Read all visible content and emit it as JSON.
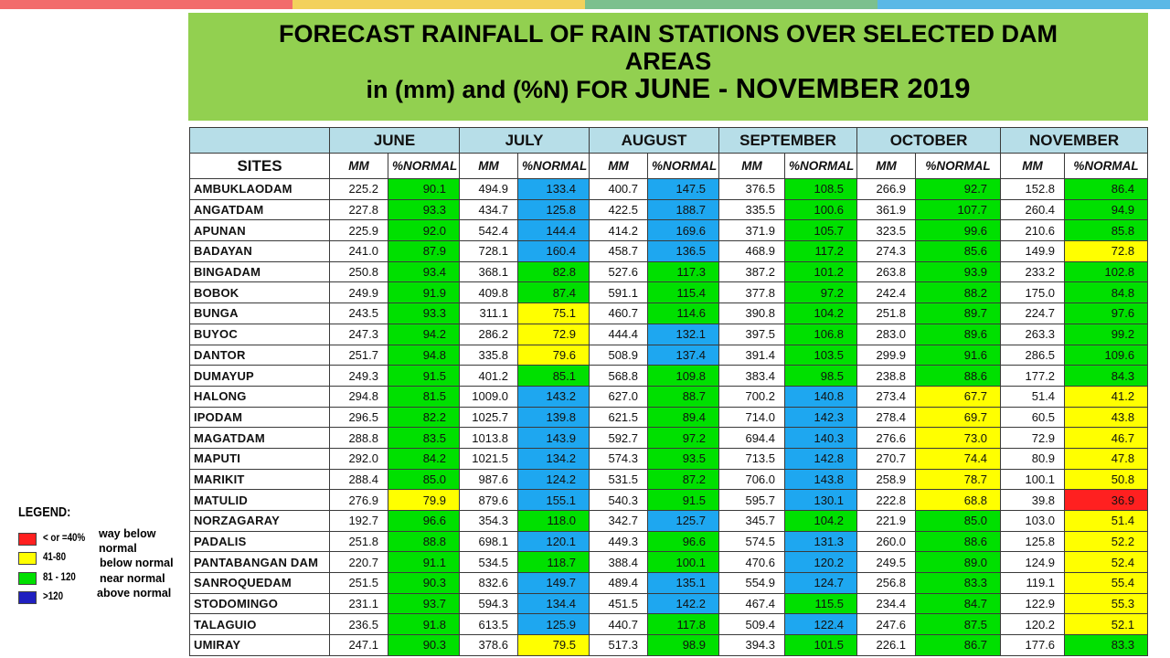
{
  "colors": {
    "topbar": [
      "#f26b6b",
      "#f3d15c",
      "#7cc08e",
      "#5ab8e6"
    ],
    "title_bg": "#92d050",
    "header_bg": "#b7dee8",
    "green": "#00e000",
    "blue": "#1ea7f0",
    "yellow": "#ffff00",
    "red": "#ff2020"
  },
  "title": {
    "line1": "FORECAST RAINFALL OF RAIN STATIONS OVER SELECTED DAM",
    "line2": "AREAS",
    "line3_prefix": "in (mm) and (%N) FOR ",
    "line3_big": "JUNE - NOVEMBER 2019"
  },
  "table": {
    "sites_header": "SITES",
    "months": [
      "JUNE",
      "JULY",
      "AUGUST",
      "SEPTEMBER",
      "OCTOBER",
      "NOVEMBER"
    ],
    "mm_header": "MM",
    "pct_header": "%NORMAL",
    "rows": [
      {
        "site": "AMBUKLAODAM",
        "mm": [
          "225.2",
          "494.9",
          "400.7",
          "376.5",
          "266.9",
          "152.8"
        ],
        "pct": [
          "90.1",
          "133.4",
          "147.5",
          "108.5",
          "92.7",
          "86.4"
        ],
        "cls": [
          "g",
          "b",
          "b",
          "g",
          "g",
          "g"
        ]
      },
      {
        "site": "ANGATDAM",
        "mm": [
          "227.8",
          "434.7",
          "422.5",
          "335.5",
          "361.9",
          "260.4"
        ],
        "pct": [
          "93.3",
          "125.8",
          "188.7",
          "100.6",
          "107.7",
          "94.9"
        ],
        "cls": [
          "g",
          "b",
          "b",
          "g",
          "g",
          "g"
        ]
      },
      {
        "site": "APUNAN",
        "mm": [
          "225.9",
          "542.4",
          "414.2",
          "371.9",
          "323.5",
          "210.6"
        ],
        "pct": [
          "92.0",
          "144.4",
          "169.6",
          "105.7",
          "99.6",
          "85.8"
        ],
        "cls": [
          "g",
          "b",
          "b",
          "g",
          "g",
          "g"
        ]
      },
      {
        "site": "BADAYAN",
        "mm": [
          "241.0",
          "728.1",
          "458.7",
          "468.9",
          "274.3",
          "149.9"
        ],
        "pct": [
          "87.9",
          "160.4",
          "136.5",
          "117.2",
          "85.6",
          "72.8"
        ],
        "cls": [
          "g",
          "b",
          "b",
          "g",
          "g",
          "y"
        ]
      },
      {
        "site": "BINGADAM",
        "mm": [
          "250.8",
          "368.1",
          "527.6",
          "387.2",
          "263.8",
          "233.2"
        ],
        "pct": [
          "93.4",
          "82.8",
          "117.3",
          "101.2",
          "93.9",
          "102.8"
        ],
        "cls": [
          "g",
          "g",
          "g",
          "g",
          "g",
          "g"
        ]
      },
      {
        "site": "BOBOK",
        "mm": [
          "249.9",
          "409.8",
          "591.1",
          "377.8",
          "242.4",
          "175.0"
        ],
        "pct": [
          "91.9",
          "87.4",
          "115.4",
          "97.2",
          "88.2",
          "84.8"
        ],
        "cls": [
          "g",
          "g",
          "g",
          "g",
          "g",
          "g"
        ]
      },
      {
        "site": "BUNGA",
        "mm": [
          "243.5",
          "311.1",
          "460.7",
          "390.8",
          "251.8",
          "224.7"
        ],
        "pct": [
          "93.3",
          "75.1",
          "114.6",
          "104.2",
          "89.7",
          "97.6"
        ],
        "cls": [
          "g",
          "y",
          "g",
          "g",
          "g",
          "g"
        ]
      },
      {
        "site": "BUYOC",
        "mm": [
          "247.3",
          "286.2",
          "444.4",
          "397.5",
          "283.0",
          "263.3"
        ],
        "pct": [
          "94.2",
          "72.9",
          "132.1",
          "106.8",
          "89.6",
          "99.2"
        ],
        "cls": [
          "g",
          "y",
          "b",
          "g",
          "g",
          "g"
        ]
      },
      {
        "site": "DANTOR",
        "mm": [
          "251.7",
          "335.8",
          "508.9",
          "391.4",
          "299.9",
          "286.5"
        ],
        "pct": [
          "94.8",
          "79.6",
          "137.4",
          "103.5",
          "91.6",
          "109.6"
        ],
        "cls": [
          "g",
          "y",
          "b",
          "g",
          "g",
          "g"
        ]
      },
      {
        "site": "DUMAYUP",
        "mm": [
          "249.3",
          "401.2",
          "568.8",
          "383.4",
          "238.8",
          "177.2"
        ],
        "pct": [
          "91.5",
          "85.1",
          "109.8",
          "98.5",
          "88.6",
          "84.3"
        ],
        "cls": [
          "g",
          "g",
          "g",
          "g",
          "g",
          "g"
        ]
      },
      {
        "site": "HALONG",
        "mm": [
          "294.8",
          "1009.0",
          "627.0",
          "700.2",
          "273.4",
          "51.4"
        ],
        "pct": [
          "81.5",
          "143.2",
          "88.7",
          "140.8",
          "67.7",
          "41.2"
        ],
        "cls": [
          "g",
          "b",
          "g",
          "b",
          "y",
          "y"
        ]
      },
      {
        "site": "IPODAM",
        "mm": [
          "296.5",
          "1025.7",
          "621.5",
          "714.0",
          "278.4",
          "60.5"
        ],
        "pct": [
          "82.2",
          "139.8",
          "89.4",
          "142.3",
          "69.7",
          "43.8"
        ],
        "cls": [
          "g",
          "b",
          "g",
          "b",
          "y",
          "y"
        ]
      },
      {
        "site": "MAGATDAM",
        "mm": [
          "288.8",
          "1013.8",
          "592.7",
          "694.4",
          "276.6",
          "72.9"
        ],
        "pct": [
          "83.5",
          "143.9",
          "97.2",
          "140.3",
          "73.0",
          "46.7"
        ],
        "cls": [
          "g",
          "b",
          "g",
          "b",
          "y",
          "y"
        ]
      },
      {
        "site": "MAPUTI",
        "mm": [
          "292.0",
          "1021.5",
          "574.3",
          "713.5",
          "270.7",
          "80.9"
        ],
        "pct": [
          "84.2",
          "134.2",
          "93.5",
          "142.8",
          "74.4",
          "47.8"
        ],
        "cls": [
          "g",
          "b",
          "g",
          "b",
          "y",
          "y"
        ]
      },
      {
        "site": "MARIKIT",
        "mm": [
          "288.4",
          "987.6",
          "531.5",
          "706.0",
          "258.9",
          "100.1"
        ],
        "pct": [
          "85.0",
          "124.2",
          "87.2",
          "143.8",
          "78.7",
          "50.8"
        ],
        "cls": [
          "g",
          "b",
          "g",
          "b",
          "y",
          "y"
        ]
      },
      {
        "site": "MATULID",
        "mm": [
          "276.9",
          "879.6",
          "540.3",
          "595.7",
          "222.8",
          "39.8"
        ],
        "pct": [
          "79.9",
          "155.1",
          "91.5",
          "130.1",
          "68.8",
          "36.9"
        ],
        "cls": [
          "y",
          "b",
          "g",
          "b",
          "y",
          "r"
        ]
      },
      {
        "site": "NORZAGARAY",
        "mm": [
          "192.7",
          "354.3",
          "342.7",
          "345.7",
          "221.9",
          "103.0"
        ],
        "pct": [
          "96.6",
          "118.0",
          "125.7",
          "104.2",
          "85.0",
          "51.4"
        ],
        "cls": [
          "g",
          "g",
          "b",
          "g",
          "g",
          "y"
        ]
      },
      {
        "site": "PADALIS",
        "mm": [
          "251.8",
          "698.1",
          "449.3",
          "574.5",
          "260.0",
          "125.8"
        ],
        "pct": [
          "88.8",
          "120.1",
          "96.6",
          "131.3",
          "88.6",
          "52.2"
        ],
        "cls": [
          "g",
          "b",
          "g",
          "b",
          "g",
          "y"
        ]
      },
      {
        "site": "PANTABANGAN DAM",
        "mm": [
          "220.7",
          "534.5",
          "388.4",
          "470.6",
          "249.5",
          "124.9"
        ],
        "pct": [
          "91.1",
          "118.7",
          "100.1",
          "120.2",
          "89.0",
          "52.4"
        ],
        "cls": [
          "g",
          "g",
          "g",
          "b",
          "g",
          "y"
        ]
      },
      {
        "site": "SANROQUEDAM",
        "mm": [
          "251.5",
          "832.6",
          "489.4",
          "554.9",
          "256.8",
          "119.1"
        ],
        "pct": [
          "90.3",
          "149.7",
          "135.1",
          "124.7",
          "83.3",
          "55.4"
        ],
        "cls": [
          "g",
          "b",
          "b",
          "b",
          "g",
          "y"
        ]
      },
      {
        "site": "STODOMINGO",
        "mm": [
          "231.1",
          "594.3",
          "451.5",
          "467.4",
          "234.4",
          "122.9"
        ],
        "pct": [
          "93.7",
          "134.4",
          "142.2",
          "115.5",
          "84.7",
          "55.3"
        ],
        "cls": [
          "g",
          "b",
          "b",
          "g",
          "g",
          "y"
        ]
      },
      {
        "site": "TALAGUIO",
        "mm": [
          "236.5",
          "613.5",
          "440.7",
          "509.4",
          "247.6",
          "120.2"
        ],
        "pct": [
          "91.8",
          "125.9",
          "117.8",
          "122.4",
          "87.5",
          "52.1"
        ],
        "cls": [
          "g",
          "b",
          "g",
          "b",
          "g",
          "y"
        ]
      },
      {
        "site": "UMIRAY",
        "mm": [
          "247.1",
          "378.6",
          "517.3",
          "394.3",
          "226.1",
          "177.6"
        ],
        "pct": [
          "90.3",
          "79.5",
          "98.9",
          "101.5",
          "86.7",
          "83.3"
        ],
        "cls": [
          "g",
          "y",
          "g",
          "g",
          "g",
          "g"
        ]
      }
    ]
  },
  "legend": {
    "title": "LEGEND:",
    "items": [
      {
        "range": "< or =40%",
        "color": "#ff2020"
      },
      {
        "range": "41-80",
        "color": "#ffff00"
      },
      {
        "range": "81 - 120",
        "color": "#00e000"
      },
      {
        "range": ">120",
        "color": "#2020c0"
      }
    ],
    "desc_way_below_1": "way below",
    "desc_way_below_2": "normal",
    "desc_below": "below normal",
    "desc_near": "near normal",
    "desc_above": "above normal"
  }
}
